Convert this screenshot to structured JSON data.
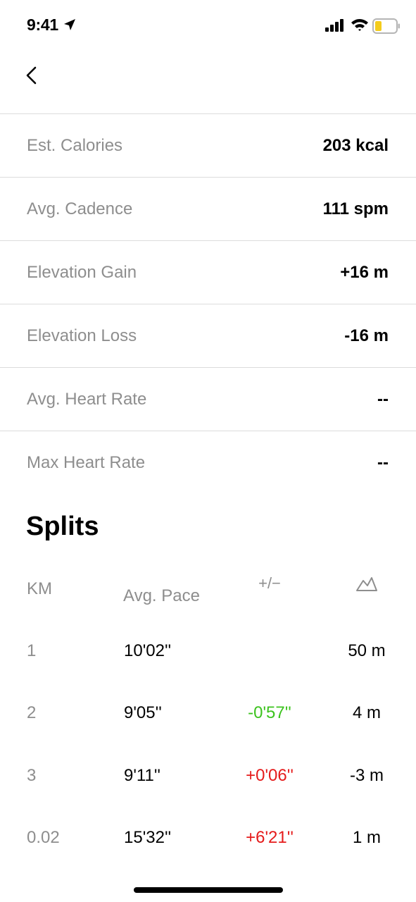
{
  "status_bar": {
    "time": "9:41"
  },
  "stats": [
    {
      "label": "Est. Calories",
      "value": "203 kcal"
    },
    {
      "label": "Avg. Cadence",
      "value": "111 spm"
    },
    {
      "label": "Elevation Gain",
      "value": "+16 m"
    },
    {
      "label": "Elevation Loss",
      "value": "-16 m"
    },
    {
      "label": "Avg. Heart Rate",
      "value": "--"
    },
    {
      "label": "Max Heart Rate",
      "value": "--"
    }
  ],
  "splits": {
    "title": "Splits",
    "headers": {
      "km": "KM",
      "pace": "Avg. Pace",
      "diff": "+/−",
      "elevation_icon": "mountain-icon"
    },
    "rows": [
      {
        "km": "1",
        "pace": "10'02''",
        "diff": "",
        "elevation": "50 m"
      },
      {
        "km": "2",
        "pace": "9'05''",
        "diff": "-0'57''",
        "elevation": "4 m"
      },
      {
        "km": "3",
        "pace": "9'11''",
        "diff": "+0'06''",
        "elevation": "-3 m"
      },
      {
        "km": "0.02",
        "pace": "15'32''",
        "diff": "+6'21''",
        "elevation": "1 m"
      }
    ],
    "colors": {
      "faster": "#3cc31e",
      "slower": "#e51b1b"
    }
  }
}
